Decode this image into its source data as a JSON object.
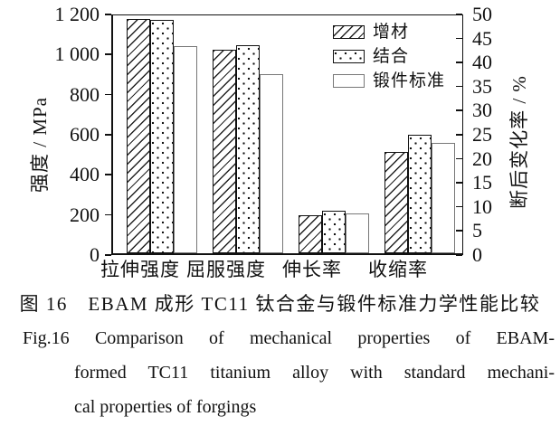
{
  "chart_data": {
    "type": "bar",
    "title": "",
    "categories": [
      "拉伸强度",
      "屈服强度",
      "伸长率",
      "收缩率"
    ],
    "category_axis": [
      "left",
      "left",
      "right",
      "right"
    ],
    "series": [
      {
        "name": "增材",
        "pattern": "diagonal-hatch",
        "values": [
          1170,
          1015,
          7.9,
          21.0
        ]
      },
      {
        "name": "结合",
        "pattern": "dots",
        "values": [
          1165,
          1040,
          8.8,
          24.7
        ]
      },
      {
        "name": "锻件标准",
        "pattern": "plain",
        "values": [
          1035,
          895,
          8.2,
          23.0
        ]
      }
    ],
    "left_axis": {
      "label": "强度 / MPa",
      "min": 0,
      "max": 1200,
      "tick_step": 200,
      "ticks": [
        "0",
        "200",
        "400",
        "600",
        "800",
        "1 000",
        "1 200"
      ]
    },
    "right_axis": {
      "label": "断后变化率 / %",
      "min": 0,
      "max": 50,
      "tick_step": 5,
      "ticks": [
        "0",
        "5",
        "10",
        "15",
        "20",
        "25",
        "30",
        "35",
        "40",
        "45",
        "50"
      ]
    },
    "legend_position": "top-right-inside",
    "grid": "off"
  },
  "legend": {
    "items": [
      "增材",
      "结合",
      "锻件标准"
    ]
  },
  "caption": {
    "zh": "图 16　EBAM 成形 TC11 钛合金与锻件标准力学性能比较",
    "en_lines": [
      "Fig.16  Comparison of mechanical properties of EBAM-",
      "formed TC11 titanium alloy with standard mechani-",
      "cal properties of forgings"
    ]
  }
}
